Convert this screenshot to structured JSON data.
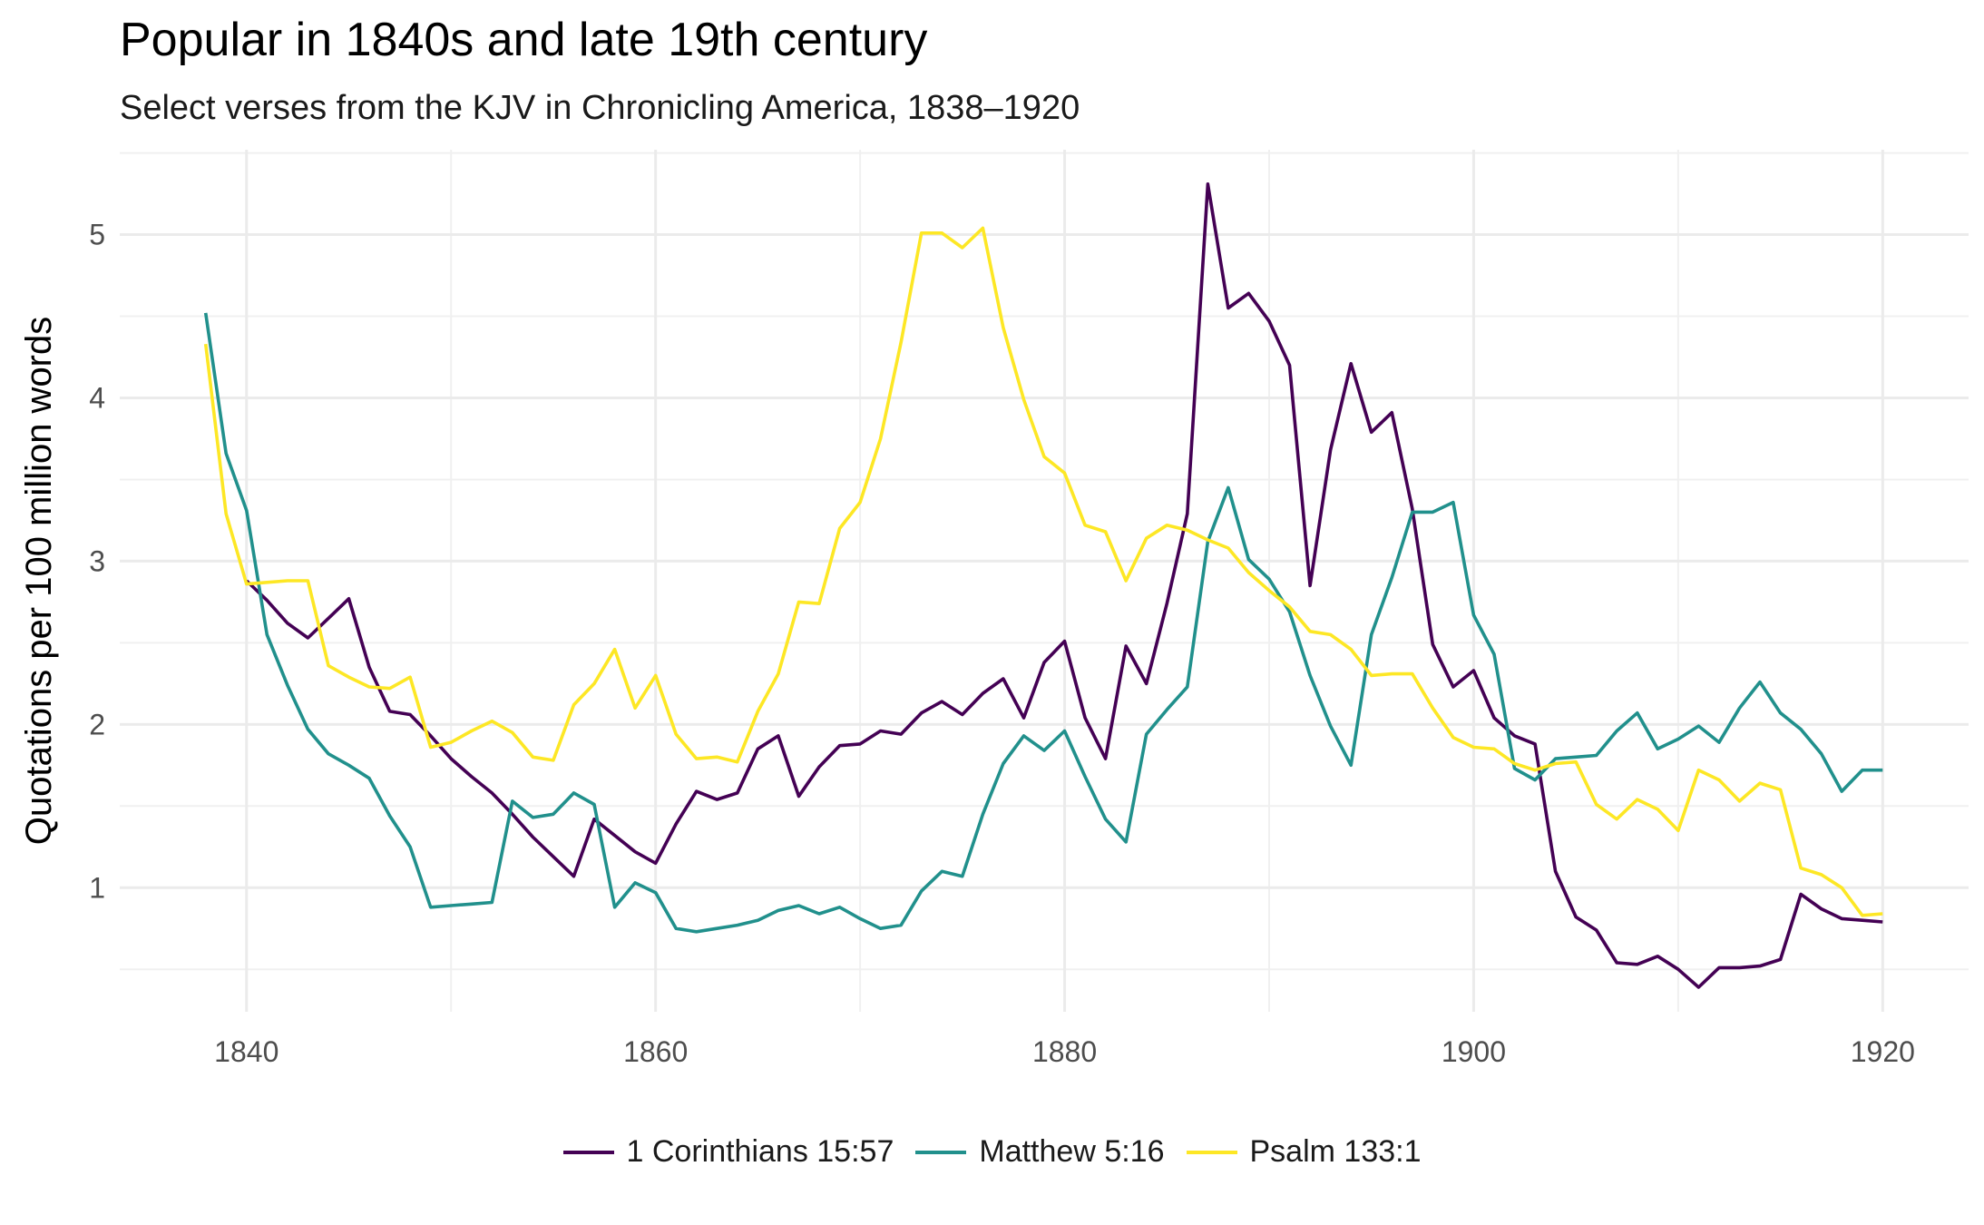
{
  "chart_data": {
    "type": "line",
    "title": "Popular in 1840s and late 19th century",
    "subtitle": "Select verses from the KJV in Chronicling America, 1838–1920",
    "xlabel": "",
    "ylabel": "Quotations per 100 million words",
    "xlim": [
      1833.8,
      1924.2
    ],
    "ylim": [
      0.24,
      5.52
    ],
    "x_ticks": [
      1840,
      1860,
      1880,
      1900,
      1920
    ],
    "y_ticks": [
      1,
      2,
      3,
      4,
      5
    ],
    "grid": true,
    "legend_position": "bottom",
    "x": [
      1838,
      1839,
      1840,
      1841,
      1842,
      1843,
      1844,
      1845,
      1846,
      1847,
      1848,
      1849,
      1850,
      1851,
      1852,
      1853,
      1854,
      1855,
      1856,
      1857,
      1858,
      1859,
      1860,
      1861,
      1862,
      1863,
      1864,
      1865,
      1866,
      1867,
      1868,
      1869,
      1870,
      1871,
      1872,
      1873,
      1874,
      1875,
      1876,
      1877,
      1878,
      1879,
      1880,
      1881,
      1882,
      1883,
      1884,
      1885,
      1886,
      1887,
      1888,
      1889,
      1890,
      1891,
      1892,
      1893,
      1894,
      1895,
      1896,
      1897,
      1898,
      1899,
      1900,
      1901,
      1902,
      1903,
      1904,
      1905,
      1906,
      1907,
      1908,
      1909,
      1910,
      1911,
      1912,
      1913,
      1914,
      1915,
      1916,
      1917,
      1918,
      1919,
      1920
    ],
    "series": [
      {
        "name": "1 Corinthians 15:57",
        "color": "#440154",
        "values": [
          null,
          null,
          2.88,
          2.76,
          2.62,
          2.53,
          2.65,
          2.77,
          2.35,
          2.08,
          2.06,
          1.93,
          1.79,
          1.68,
          1.58,
          1.45,
          1.31,
          1.19,
          1.07,
          1.42,
          1.32,
          1.22,
          1.15,
          1.39,
          1.59,
          1.54,
          1.58,
          1.85,
          1.93,
          1.56,
          1.74,
          1.87,
          1.88,
          1.96,
          1.94,
          2.07,
          2.14,
          2.06,
          2.19,
          2.28,
          2.04,
          2.38,
          2.51,
          2.04,
          1.79,
          2.48,
          2.25,
          2.74,
          3.29,
          5.31,
          4.55,
          4.64,
          4.47,
          4.2,
          2.85,
          3.68,
          4.21,
          3.79,
          3.91,
          3.32,
          2.49,
          2.23,
          2.33,
          2.04,
          1.93,
          1.88,
          1.1,
          0.82,
          0.74,
          0.54,
          0.53,
          0.58,
          0.5,
          0.39,
          0.51,
          0.51,
          0.52,
          0.56,
          0.96,
          0.87,
          0.81,
          0.8,
          0.79
        ]
      },
      {
        "name": "Matthew 5:16",
        "color": "#21908C",
        "values": [
          4.52,
          3.66,
          3.31,
          2.55,
          2.24,
          1.97,
          1.82,
          1.75,
          1.67,
          1.44,
          1.25,
          0.88,
          0.89,
          0.9,
          0.91,
          1.53,
          1.43,
          1.45,
          1.58,
          1.51,
          0.88,
          1.03,
          0.97,
          0.75,
          0.73,
          0.75,
          0.77,
          0.8,
          0.86,
          0.89,
          0.84,
          0.88,
          0.81,
          0.75,
          0.77,
          0.98,
          1.1,
          1.07,
          1.45,
          1.76,
          1.93,
          1.84,
          1.96,
          1.68,
          1.42,
          1.28,
          1.94,
          2.09,
          2.23,
          3.12,
          3.45,
          3.01,
          2.89,
          2.69,
          2.3,
          1.99,
          1.75,
          2.55,
          2.9,
          3.3,
          3.3,
          3.36,
          2.67,
          2.43,
          1.73,
          1.66,
          1.79,
          1.8,
          1.81,
          1.96,
          2.07,
          1.85,
          1.91,
          1.99,
          1.89,
          2.1,
          2.26,
          2.07,
          1.97,
          1.82,
          1.59,
          1.72,
          1.72
        ]
      },
      {
        "name": "Psalm 133:1",
        "color": "#FDE725",
        "values": [
          4.33,
          3.29,
          2.86,
          2.87,
          2.88,
          2.88,
          2.36,
          2.29,
          2.23,
          2.22,
          2.29,
          1.86,
          1.89,
          1.96,
          2.02,
          1.95,
          1.8,
          1.78,
          2.12,
          2.25,
          2.46,
          2.1,
          2.3,
          1.94,
          1.79,
          1.8,
          1.77,
          2.08,
          2.31,
          2.75,
          2.74,
          3.2,
          3.36,
          3.75,
          4.34,
          5.01,
          5.01,
          4.92,
          5.04,
          4.43,
          3.99,
          3.64,
          3.54,
          3.22,
          3.18,
          2.88,
          3.14,
          3.22,
          3.19,
          3.13,
          3.08,
          2.93,
          2.82,
          2.72,
          2.57,
          2.55,
          2.46,
          2.3,
          2.31,
          2.31,
          2.1,
          1.92,
          1.86,
          1.85,
          1.76,
          1.72,
          1.76,
          1.77,
          1.51,
          1.42,
          1.54,
          1.48,
          1.35,
          1.72,
          1.66,
          1.53,
          1.64,
          1.6,
          1.12,
          1.08,
          1.0,
          0.83,
          0.84
        ]
      }
    ]
  }
}
